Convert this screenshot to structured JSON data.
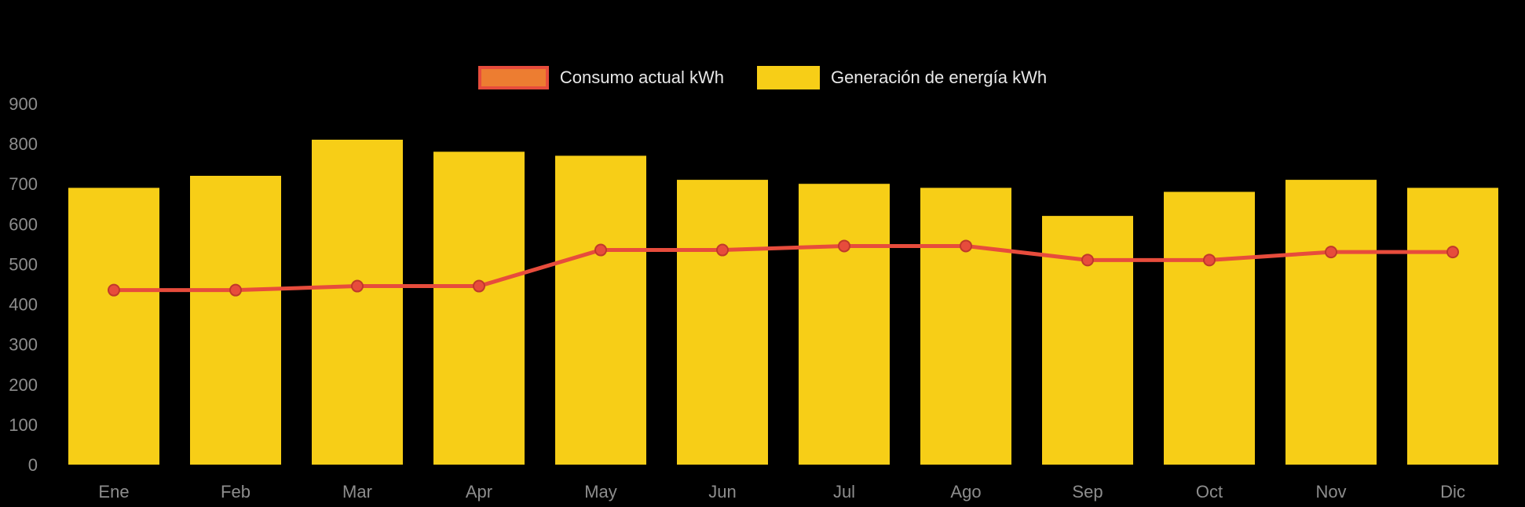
{
  "chart_data": {
    "type": "bar",
    "subtype": "bar-with-line-overlay",
    "title": "",
    "categories": [
      "Ene",
      "Feb",
      "Mar",
      "Apr",
      "May",
      "Jun",
      "Jul",
      "Ago",
      "Sep",
      "Oct",
      "Nov",
      "Dic"
    ],
    "yticks": [
      0,
      100,
      200,
      300,
      400,
      500,
      600,
      700,
      800,
      900
    ],
    "ylim": [
      0,
      900
    ],
    "grid": false,
    "legend_position": "top-center",
    "background_color": "#000000",
    "series": [
      {
        "name": "Generación de energía kWh",
        "type": "bar",
        "color": "#F7CE17",
        "values": [
          690,
          720,
          810,
          780,
          770,
          710,
          700,
          690,
          620,
          680,
          710,
          690
        ]
      },
      {
        "name": "Consumo actual kWh",
        "type": "line",
        "color": "#E74C3C",
        "marker": "circle",
        "values": [
          435,
          435,
          445,
          445,
          535,
          535,
          545,
          545,
          510,
          510,
          530,
          530
        ]
      }
    ],
    "legend": [
      {
        "label": "Consumo actual kWh",
        "swatch_fill": "#ED7D31",
        "swatch_border": "#E74C3C",
        "swatch_type": "line"
      },
      {
        "label": "Generación de energía kWh",
        "swatch_fill": "#F7CE17",
        "swatch_border": "#F7CE17",
        "swatch_type": "bar"
      }
    ]
  },
  "colors": {
    "axis_text": "#8d8d8d",
    "legend_text": "#e8e8e8",
    "background": "#000000"
  }
}
